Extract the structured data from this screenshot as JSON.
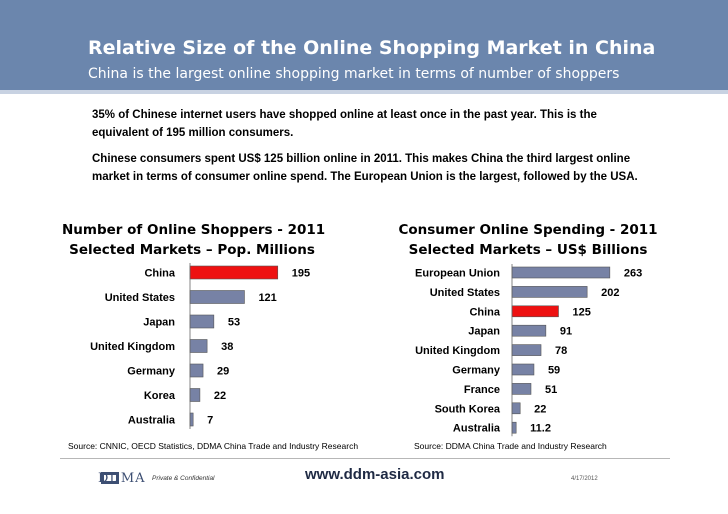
{
  "header": {
    "title": "Relative Size of the Online Shopping Market in China",
    "subtitle": "China is the largest online shopping market in terms of number of shoppers"
  },
  "body": {
    "paragraph1": "35% of Chinese internet users have shopped online at least once in the past year. This is the equivalent of 195 million consumers.",
    "paragraph2": "Chinese consumers spent US$ 125 billion online in 2011. This makes China the third largest online market in terms of consumer online spend. The European Union is the largest, followed by the USA."
  },
  "colors": {
    "header": "#6b86ad",
    "bar": "#7782a5",
    "highlight": "#ee1111"
  },
  "chart_data": [
    {
      "type": "bar",
      "orientation": "horizontal",
      "title": "Number of Online Shoppers - 2011",
      "subtitle": "Selected Markets – Pop. Millions",
      "categories": [
        "China",
        "United States",
        "Japan",
        "United Kingdom",
        "Germany",
        "Korea",
        "Australia"
      ],
      "values": [
        195,
        121,
        53,
        38,
        29,
        22,
        7
      ],
      "value_labels": [
        "195",
        "121",
        "53",
        "38",
        "29",
        "22",
        "7"
      ],
      "highlight": "China",
      "source": "Source: CNNIC, OECD Statistics, DDMA China Trade and Industry Research"
    },
    {
      "type": "bar",
      "orientation": "horizontal",
      "title": "Consumer Online Spending - 2011",
      "subtitle": "Selected Markets – US$ Billions",
      "categories": [
        "European Union",
        "United States",
        "China",
        "Japan",
        "United Kingdom",
        "Germany",
        "France",
        "South Korea",
        "Australia"
      ],
      "values": [
        263,
        202,
        125,
        91,
        78,
        59,
        51,
        22,
        11.2
      ],
      "value_labels": [
        "263",
        "202",
        "125",
        "91",
        "78",
        "59",
        "51",
        "22",
        "11.2"
      ],
      "highlight": "China",
      "source": "Source: DDMA China Trade and Industry Research"
    }
  ],
  "footer": {
    "logo_text": "DDMA",
    "confidential": "Private & Confidential",
    "website": "www.ddm-asia.com",
    "date": "4/17/2012"
  }
}
